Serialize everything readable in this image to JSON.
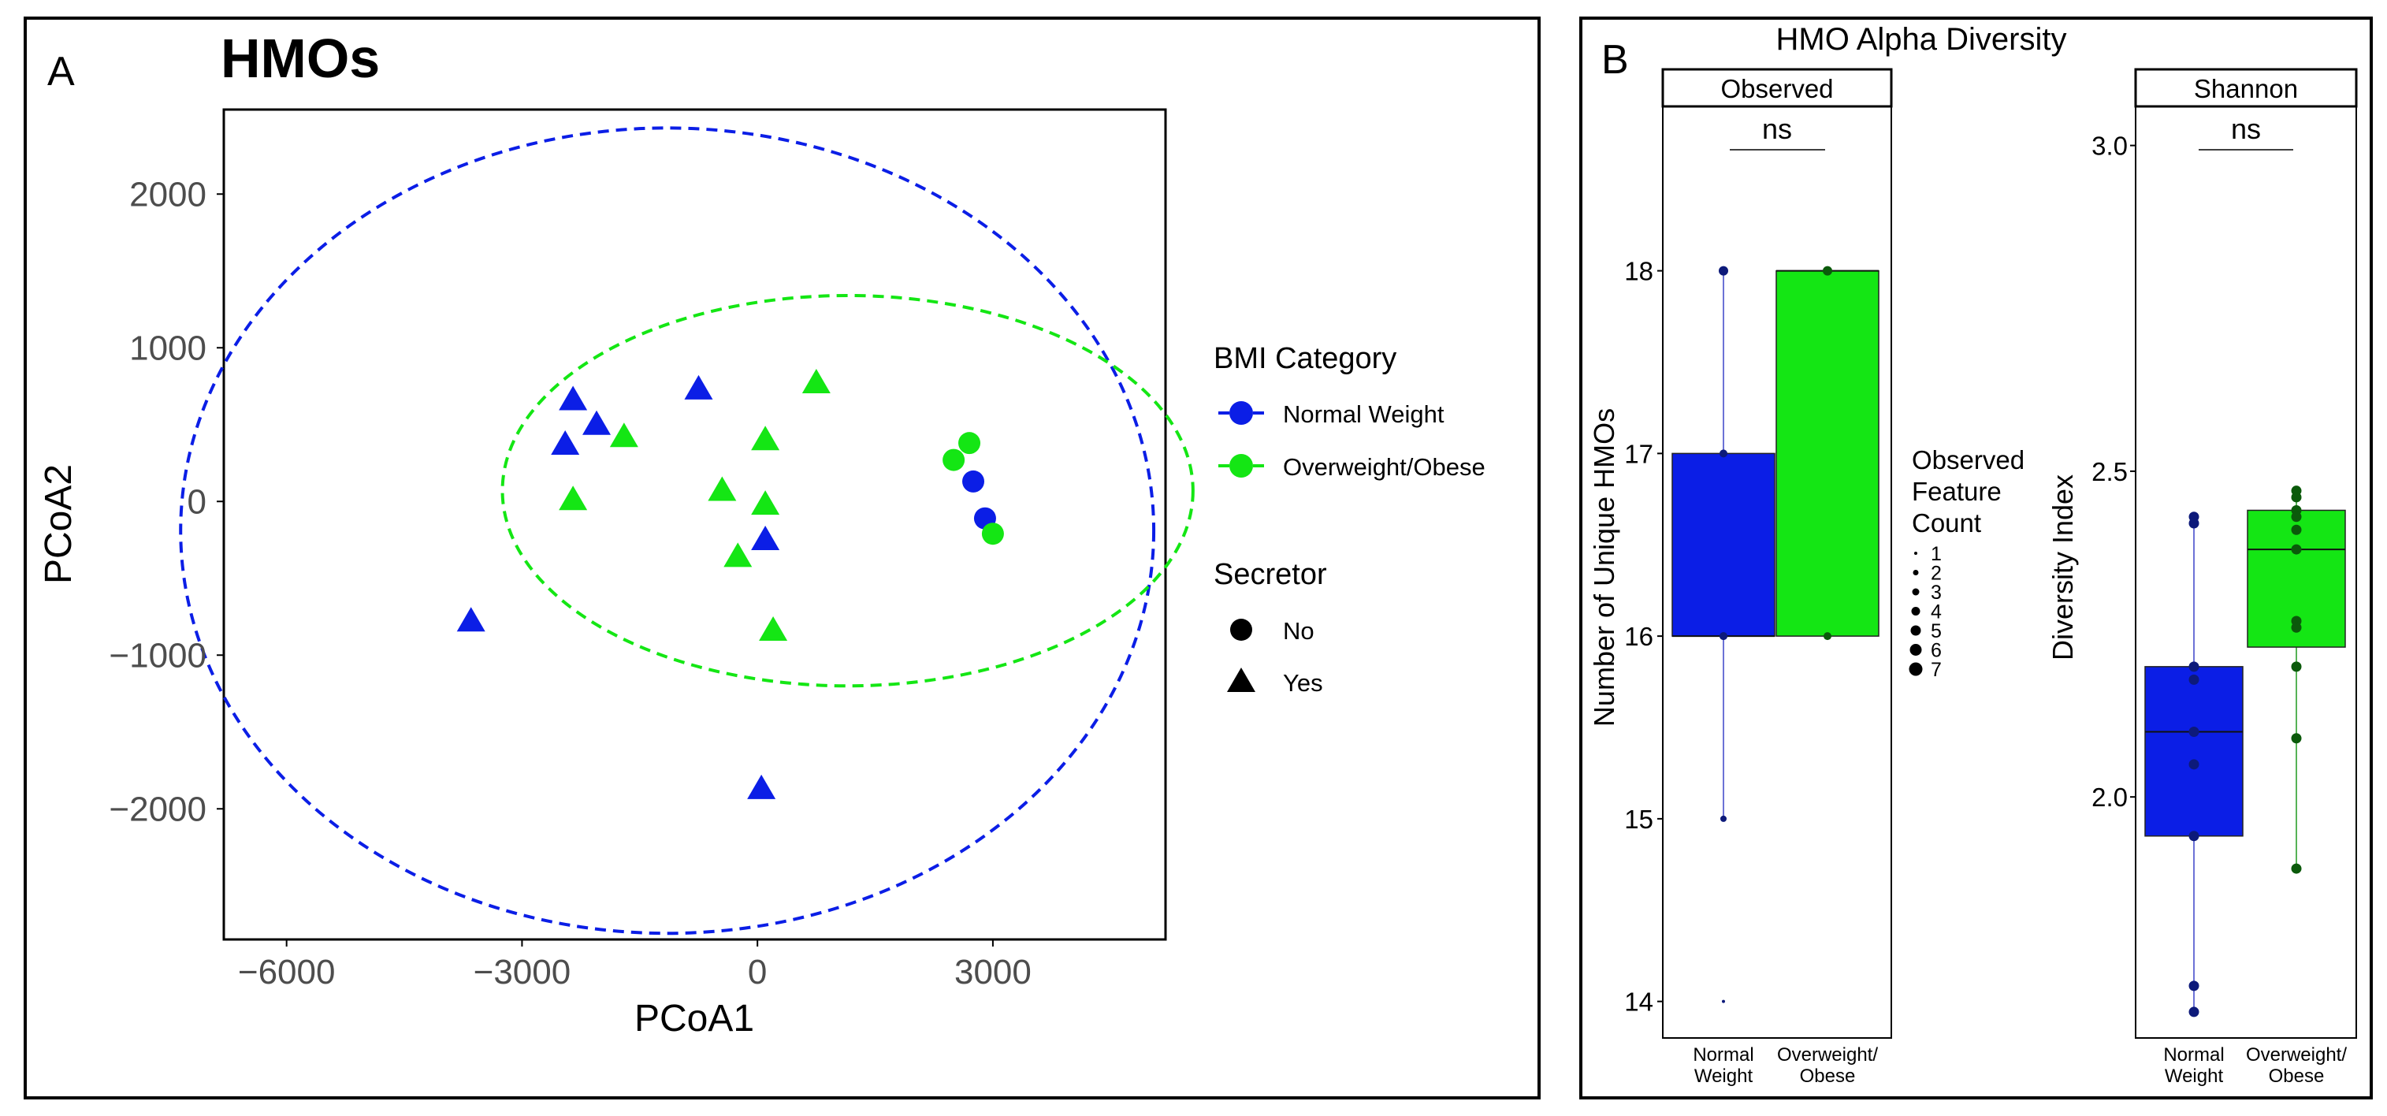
{
  "panel_a": {
    "label": "A",
    "title": "HMOs",
    "chart_data": {
      "type": "scatter",
      "title": "HMOs",
      "xlabel": "PCoA1",
      "ylabel": "PCoA2",
      "xlim": [
        -6800,
        5200
      ],
      "ylim": [
        -2850,
        2550
      ],
      "xticks": [
        -6000,
        -3000,
        0,
        3000
      ],
      "xtick_labels": [
        "−6000",
        "−3000",
        "0",
        "3000"
      ],
      "yticks": [
        -2000,
        -1000,
        0,
        1000,
        2000
      ],
      "ytick_labels": [
        "−2000",
        "−1000",
        "0",
        "1000",
        "2000"
      ],
      "grid": false,
      "points": [
        {
          "x": -2350,
          "y": 650,
          "group": "Normal Weight",
          "secretor": "Yes"
        },
        {
          "x": -2050,
          "y": 490,
          "group": "Normal Weight",
          "secretor": "Yes"
        },
        {
          "x": -2450,
          "y": 360,
          "group": "Normal Weight",
          "secretor": "Yes"
        },
        {
          "x": -750,
          "y": 720,
          "group": "Normal Weight",
          "secretor": "Yes"
        },
        {
          "x": 100,
          "y": -260,
          "group": "Normal Weight",
          "secretor": "Yes"
        },
        {
          "x": -3650,
          "y": -790,
          "group": "Normal Weight",
          "secretor": "Yes"
        },
        {
          "x": 50,
          "y": -1880,
          "group": "Normal Weight",
          "secretor": "Yes"
        },
        {
          "x": 2750,
          "y": 130,
          "group": "Normal Weight",
          "secretor": "No"
        },
        {
          "x": 2900,
          "y": -110,
          "group": "Normal Weight",
          "secretor": "No"
        },
        {
          "x": -1700,
          "y": 410,
          "group": "Overweight/Obese",
          "secretor": "Yes"
        },
        {
          "x": -2350,
          "y": 0,
          "group": "Overweight/Obese",
          "secretor": "Yes"
        },
        {
          "x": -450,
          "y": 60,
          "group": "Overweight/Obese",
          "secretor": "Yes"
        },
        {
          "x": 100,
          "y": 390,
          "group": "Overweight/Obese",
          "secretor": "Yes"
        },
        {
          "x": 750,
          "y": 760,
          "group": "Overweight/Obese",
          "secretor": "Yes"
        },
        {
          "x": 100,
          "y": -30,
          "group": "Overweight/Obese",
          "secretor": "Yes"
        },
        {
          "x": -250,
          "y": -370,
          "group": "Overweight/Obese",
          "secretor": "Yes"
        },
        {
          "x": 200,
          "y": -850,
          "group": "Overweight/Obese",
          "secretor": "Yes"
        },
        {
          "x": 2500,
          "y": 270,
          "group": "Overweight/Obese",
          "secretor": "No"
        },
        {
          "x": 2700,
          "y": 380,
          "group": "Overweight/Obese",
          "secretor": "No"
        },
        {
          "x": 3000,
          "y": -210,
          "group": "Overweight/Obese",
          "secretor": "No"
        }
      ],
      "ellipses": [
        {
          "group": "Normal Weight",
          "cx": -1150,
          "cy": -190,
          "rx": 6200,
          "ry": 2620
        },
        {
          "group": "Overweight/Obese",
          "cx": 1150,
          "cy": 70,
          "rx": 4400,
          "ry": 1270
        }
      ],
      "legend_position": "right",
      "legend": {
        "color_title": "BMI Category",
        "color_items": [
          "Normal Weight",
          "Overweight/Obese"
        ],
        "shape_title": "Secretor",
        "shape_items": [
          "No",
          "Yes"
        ]
      }
    }
  },
  "panel_b": {
    "label": "B",
    "title": "HMO Alpha Diversity",
    "size_legend": {
      "title_lines": [
        "Observed",
        "Feature",
        "Count"
      ],
      "items": [
        "1",
        "2",
        "3",
        "4",
        "5",
        "6",
        "7"
      ]
    },
    "chart_data": [
      {
        "type": "box",
        "facet": "Observed",
        "ylabel": "Number of Unique HMOs",
        "ylim": [
          13.8,
          18.9
        ],
        "yticks": [
          14,
          15,
          16,
          17,
          18
        ],
        "ytick_labels": [
          "14",
          "15",
          "16",
          "17",
          "18"
        ],
        "significance": "ns",
        "groups": [
          {
            "name_lines": [
              "Normal",
              "Weight"
            ],
            "q1": 16,
            "median": 16,
            "q3": 17,
            "min": 15,
            "max": 18,
            "points": [
              18,
              17,
              16,
              16,
              15,
              14
            ]
          },
          {
            "name_lines": [
              "Overweight/",
              "Obese"
            ],
            "q1": 16,
            "median": 18,
            "q3": 18,
            "min": 16,
            "max": 18,
            "points": [
              18,
              18,
              16
            ]
          }
        ]
      },
      {
        "type": "box",
        "facet": "Shannon",
        "ylabel": "Diversity Index",
        "ylim": [
          1.63,
          3.06
        ],
        "yticks": [
          2.0,
          2.5,
          3.0
        ],
        "ytick_labels": [
          "2.0",
          "2.5",
          "3.0"
        ],
        "significance": "ns",
        "groups": [
          {
            "name_lines": [
              "Normal",
              "Weight"
            ],
            "q1": 1.94,
            "median": 2.1,
            "q3": 2.2,
            "min": 1.67,
            "max": 2.43,
            "points": [
              2.43,
              2.42,
              2.2,
              2.18,
              2.1,
              2.05,
              1.94,
              1.71,
              1.67
            ]
          },
          {
            "name_lines": [
              "Overweight/",
              "Obese"
            ],
            "q1": 2.23,
            "median": 2.38,
            "q3": 2.44,
            "min": 1.89,
            "max": 2.47,
            "points": [
              2.47,
              2.46,
              2.44,
              2.43,
              2.41,
              2.38,
              2.27,
              2.26,
              2.2,
              2.09,
              1.89
            ]
          }
        ]
      }
    ]
  },
  "colors": {
    "normal_weight": "#0b1ee6",
    "overweight_obese": "#14e614",
    "normal_points": "#0d1a7a",
    "overweight_points": "#0b5a0b",
    "axis": "#000000",
    "tick_text": "#4d4d4d"
  }
}
